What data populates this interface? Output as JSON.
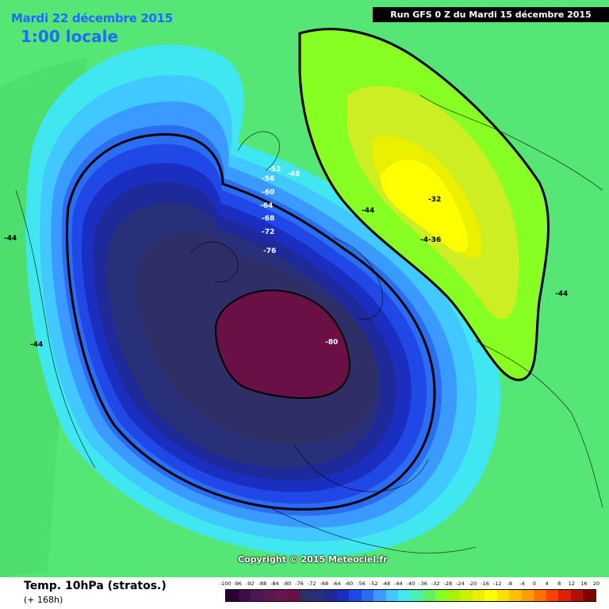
{
  "header": {
    "date": "Mardi 22 décembre 2015",
    "time": "1:00 locale",
    "run": "Run GFS 0 Z du Mardi 15 décembre 2015"
  },
  "copyright": "Copyright © 2015 Meteociel.fr",
  "footer": {
    "title": "Temp. 10hPa (stratos.)",
    "subtitle": "(+ 168h)"
  },
  "legend": {
    "labels": [
      "-100",
      "-96",
      "-92",
      "-88",
      "-84",
      "-80",
      "-76",
      "-72",
      "-68",
      "-64",
      "-60",
      "-56",
      "-52",
      "-48",
      "-44",
      "-40",
      "-36",
      "-32",
      "-28",
      "-24",
      "-20",
      "-16",
      "-12",
      "-8",
      "-4",
      "0",
      "4",
      "8",
      "12",
      "16",
      "20"
    ],
    "colors": [
      "#2a0033",
      "#3d0d4a",
      "#4d1553",
      "#5a1a50",
      "#64184a",
      "#6b0f47",
      "#2e2f66",
      "#28307a",
      "#1f2a9a",
      "#1a2ec0",
      "#2048e6",
      "#2a6cf2",
      "#3a9aff",
      "#40c8ff",
      "#44e6f0",
      "#4cf0b0",
      "#66ee66",
      "#88ff22",
      "#aaf000",
      "#ccee00",
      "#eaf000",
      "#ffff00",
      "#ffe000",
      "#ffc000",
      "#ffa000",
      "#ff7000",
      "#ff4000",
      "#e02000",
      "#b01000",
      "#800000"
    ]
  },
  "contour_labels": {
    "m52": "-52",
    "m48": "-48",
    "m56": "-56",
    "m60": "-60",
    "m64": "-64",
    "m68": "-68",
    "m72": "-72",
    "m76": "-76",
    "m80": "-80",
    "m32": "-32",
    "m44_a": "-44",
    "m44_b": "-44",
    "m44_c": "-44",
    "m44_d": "-44",
    "m36": "-4-36"
  },
  "palette": {
    "background": "#56e676",
    "warm_green": "#88ff22",
    "warm_yellowgreen": "#ccee22",
    "warm_yellow": "#ffff00",
    "cold_dark": "#6b0f47"
  }
}
